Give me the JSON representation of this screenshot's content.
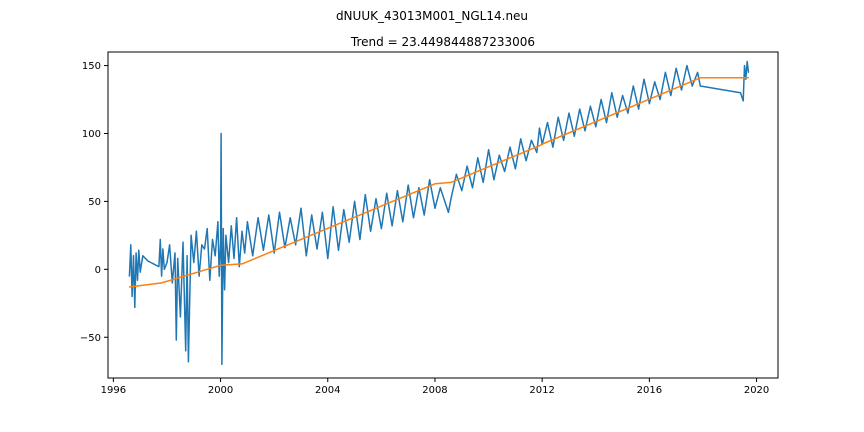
{
  "chart_data": {
    "type": "line",
    "suptitle": "dNUUK_43013M001_NGL14.neu",
    "title": "Trend = 23.449844887233006",
    "xlabel": "",
    "ylabel": "",
    "xlim": [
      1995.8,
      2020.8
    ],
    "ylim": [
      -80,
      160
    ],
    "x_ticks": [
      1996,
      2000,
      2004,
      2008,
      2012,
      2016,
      2020
    ],
    "x_tick_labels": [
      "1996",
      "2000",
      "2004",
      "2008",
      "2012",
      "2016",
      "2020"
    ],
    "y_ticks": [
      -50,
      0,
      50,
      100,
      150
    ],
    "y_tick_labels": [
      "−50",
      "0",
      "50",
      "100",
      "150"
    ],
    "grid": false,
    "legend": "none",
    "series": [
      {
        "color": "#1f77b4",
        "x": [
          1996.6,
          1996.65,
          1996.7,
          1996.75,
          1996.8,
          1996.85,
          1996.9,
          1996.95,
          1997.0,
          1997.1,
          1997.2,
          1997.3,
          1997.4,
          1997.5,
          1997.6,
          1997.7,
          1997.75,
          1997.8,
          1997.85,
          1997.9,
          1998.0,
          1998.1,
          1998.2,
          1998.3,
          1998.35,
          1998.4,
          1998.5,
          1998.6,
          1998.7,
          1998.75,
          1998.8,
          1998.9,
          1999.0,
          1999.1,
          1999.2,
          1999.3,
          1999.4,
          1999.5,
          1999.6,
          1999.7,
          1999.8,
          1999.9,
          1999.95,
          2000.0,
          2000.02,
          2000.05,
          2000.1,
          2000.15,
          2000.2,
          2000.3,
          2000.4,
          2000.5,
          2000.6,
          2000.7,
          2000.8,
          2000.9,
          2001.0,
          2001.2,
          2001.4,
          2001.6,
          2001.8,
          2002.0,
          2002.2,
          2002.4,
          2002.6,
          2002.8,
          2003.0,
          2003.2,
          2003.4,
          2003.6,
          2003.8,
          2004.0,
          2004.2,
          2004.4,
          2004.6,
          2004.8,
          2005.0,
          2005.2,
          2005.4,
          2005.6,
          2005.8,
          2006.0,
          2006.2,
          2006.4,
          2006.6,
          2006.8,
          2007.0,
          2007.2,
          2007.4,
          2007.6,
          2007.8,
          2008.0,
          2008.2,
          2008.4,
          2008.5,
          2008.6,
          2008.8,
          2009.0,
          2009.2,
          2009.4,
          2009.6,
          2009.8,
          2010.0,
          2010.2,
          2010.4,
          2010.6,
          2010.8,
          2011.0,
          2011.2,
          2011.4,
          2011.6,
          2011.8,
          2011.9,
          2012.0,
          2012.2,
          2012.4,
          2012.6,
          2012.8,
          2013.0,
          2013.2,
          2013.4,
          2013.6,
          2013.8,
          2014.0,
          2014.2,
          2014.4,
          2014.6,
          2014.8,
          2015.0,
          2015.2,
          2015.4,
          2015.6,
          2015.8,
          2016.0,
          2016.2,
          2016.4,
          2016.6,
          2016.8,
          2017.0,
          2017.2,
          2017.4,
          2017.6,
          2017.8,
          2017.9,
          2019.4,
          2019.5,
          2019.55,
          2019.6,
          2019.65,
          2019.7
        ],
        "values": [
          -5,
          18,
          -20,
          10,
          -28,
          12,
          -8,
          14,
          -2,
          10,
          8,
          6,
          5,
          4,
          3,
          2,
          22,
          -5,
          15,
          0,
          5,
          18,
          -10,
          12,
          -52,
          8,
          -35,
          20,
          -60,
          10,
          -68,
          25,
          5,
          28,
          -5,
          18,
          15,
          30,
          -8,
          22,
          10,
          35,
          -5,
          20,
          100,
          -70,
          30,
          -15,
          25,
          5,
          32,
          8,
          38,
          2,
          28,
          12,
          35,
          10,
          38,
          14,
          40,
          12,
          42,
          16,
          38,
          18,
          45,
          10,
          40,
          15,
          42,
          8,
          46,
          14,
          44,
          20,
          50,
          22,
          55,
          28,
          52,
          30,
          56,
          32,
          58,
          35,
          62,
          38,
          60,
          40,
          66,
          45,
          60,
          48,
          42,
          52,
          70,
          58,
          76,
          60,
          82,
          64,
          88,
          66,
          84,
          72,
          90,
          74,
          96,
          80,
          95,
          86,
          104,
          92,
          108,
          90,
          112,
          95,
          115,
          98,
          118,
          102,
          120,
          105,
          125,
          108,
          130,
          112,
          128,
          115,
          135,
          118,
          140,
          122,
          138,
          125,
          145,
          128,
          148,
          132,
          150,
          135,
          145,
          135,
          130,
          124,
          150,
          140,
          153,
          145
        ]
      },
      {
        "color": "#ff7f0e",
        "x": [
          1996.6,
          1997.8,
          2000.0,
          2000.8,
          2008.0,
          2008.6,
          2011.9,
          2012.1,
          2017.9,
          2019.7
        ],
        "values": [
          -13,
          -10,
          3,
          4,
          63,
          64,
          91,
          93,
          141,
          141
        ]
      }
    ]
  }
}
